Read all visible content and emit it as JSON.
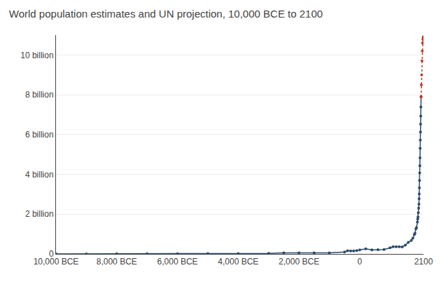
{
  "chart_data": {
    "type": "line",
    "title": "World population estimates and UN projection, 10,000 BCE to 2100",
    "xlim": [
      -10000,
      2100
    ],
    "ylim": [
      0,
      11000000000
    ],
    "xticks": [
      {
        "value": -10000,
        "label": "10,000 BCE"
      },
      {
        "value": -8000,
        "label": "8,000 BCE"
      },
      {
        "value": -6000,
        "label": "6,000 BCE"
      },
      {
        "value": -4000,
        "label": "4,000 BCE"
      },
      {
        "value": -2000,
        "label": "2,000 BCE"
      },
      0,
      2100
    ],
    "yticks": [
      0,
      {
        "value": 2000000000,
        "label": "2 billion"
      },
      {
        "value": 4000000000,
        "label": "4 billion"
      },
      {
        "value": 6000000000,
        "label": "6 billion"
      },
      {
        "value": 8000000000,
        "label": "8 billion"
      },
      {
        "value": 10000000000,
        "label": "10 billion"
      }
    ],
    "grid": "y",
    "series": [
      {
        "color": "#2d4a6b",
        "line_style": "solid",
        "marker": "circle",
        "x": [
          -10000,
          -9000,
          -8000,
          -7000,
          -6000,
          -5000,
          -4000,
          -3000,
          -2500,
          -2000,
          -1500,
          -1000,
          -500,
          -400,
          -300,
          -200,
          -100,
          1,
          200,
          400,
          600,
          800,
          1000,
          1100,
          1200,
          1300,
          1400,
          1500,
          1600,
          1700,
          1750,
          1800,
          1820,
          1850,
          1870,
          1900,
          1910,
          1920,
          1930,
          1940,
          1950,
          1955,
          1960,
          1965,
          1970,
          1975,
          1980,
          1985,
          1990,
          1995,
          2000,
          2005,
          2010,
          2015,
          2021
        ],
        "values": [
          2000000,
          3000000,
          5000000,
          7000000,
          10000000,
          15000000,
          20000000,
          30000000,
          50000000,
          50000000,
          50000000,
          50000000,
          100000000,
          162000000,
          150000000,
          150000000,
          170000000,
          200000000,
          256000000,
          206000000,
          209000000,
          220000000,
          310000000,
          360000000,
          360000000,
          360000000,
          350000000,
          438000000,
          580000000,
          682000000,
          791000000,
          978000000,
          1040000000,
          1263000000,
          1325000000,
          1600000000,
          1750000000,
          1860000000,
          2070000000,
          2300000000,
          2500000000,
          2773000000,
          3018000000,
          3322000000,
          3696000000,
          4068000000,
          4435000000,
          4831000000,
          5310000000,
          5719000000,
          6127000000,
          6520000000,
          6930000000,
          7383000000,
          7900000000
        ]
      },
      {
        "color": "#c0392b",
        "line_style": "dotted",
        "marker": "circle",
        "x": [
          2021,
          2030,
          2040,
          2050,
          2060,
          2070,
          2080,
          2090,
          2100
        ],
        "values": [
          7900000000,
          8500000000,
          9000000000,
          9700000000,
          10200000000,
          10600000000,
          10800000000,
          10900000000,
          10900000000
        ]
      }
    ]
  }
}
